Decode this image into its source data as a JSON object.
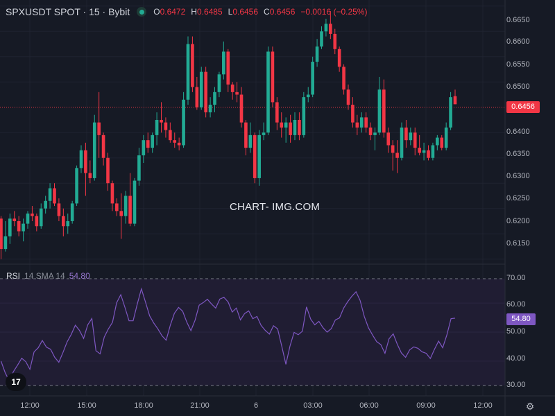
{
  "header": {
    "symbol": "SPXUSDT SPOT · 15 · Bybit",
    "o_label": "O",
    "o_value": "0.6472",
    "h_label": "H",
    "h_value": "0.6485",
    "l_label": "L",
    "l_value": "0.6456",
    "c_label": "C",
    "c_value": "0.6456",
    "change": "−0.0016 (−0.25%)"
  },
  "price_axis": {
    "ticks": [
      "0.6650",
      "0.6600",
      "0.6550",
      "0.6500",
      "0.6400",
      "0.6350",
      "0.6300",
      "0.6250",
      "0.6200",
      "0.6150"
    ],
    "last_price": "0.6456"
  },
  "watermark": "CHART- IMG.COM",
  "rsi": {
    "name": "RSI",
    "params": "14 SMA 14",
    "value": "54.80",
    "ticks": [
      "70.00",
      "60.00",
      "50.00",
      "40.00",
      "30.00"
    ]
  },
  "time_axis": [
    "12:00",
    "15:00",
    "18:00",
    "21:00",
    "6",
    "03:00",
    "06:00",
    "09:00",
    "12:00"
  ],
  "logo": "17",
  "colors": {
    "up": "#22ab94",
    "down": "#f23645",
    "rsi": "#7e57c2",
    "background": "#161a25"
  },
  "icons": {
    "settings": "gear-icon",
    "logo": "tradingview-logo"
  },
  "chart_data": [
    {
      "type": "candlestick",
      "title": "SPXUSDT SPOT · 15 · Bybit",
      "ylim": [
        0.614,
        0.6662
      ],
      "candles": [
        [
          0.623,
          0.6235,
          0.615,
          0.617
        ],
        [
          0.617,
          0.6225,
          0.6165,
          0.6195
        ],
        [
          0.6195,
          0.624,
          0.618,
          0.623
        ],
        [
          0.623,
          0.6245,
          0.6215,
          0.6225
        ],
        [
          0.6225,
          0.6235,
          0.6195,
          0.6205
        ],
        [
          0.6205,
          0.623,
          0.6185,
          0.622
        ],
        [
          0.622,
          0.6245,
          0.621,
          0.624
        ],
        [
          0.624,
          0.6255,
          0.6225,
          0.6235
        ],
        [
          0.6235,
          0.624,
          0.6205,
          0.6215
        ],
        [
          0.6215,
          0.626,
          0.621,
          0.625
        ],
        [
          0.625,
          0.6275,
          0.624,
          0.6265
        ],
        [
          0.6265,
          0.63,
          0.625,
          0.629
        ],
        [
          0.629,
          0.63,
          0.6255,
          0.626
        ],
        [
          0.626,
          0.627,
          0.6225,
          0.6235
        ],
        [
          0.6235,
          0.625,
          0.6195,
          0.6215
        ],
        [
          0.6215,
          0.624,
          0.62,
          0.6225
        ],
        [
          0.6225,
          0.6265,
          0.622,
          0.626
        ],
        [
          0.626,
          0.6335,
          0.6255,
          0.633
        ],
        [
          0.633,
          0.6375,
          0.632,
          0.6365
        ],
        [
          0.6365,
          0.638,
          0.6275,
          0.632
        ],
        [
          0.632,
          0.6345,
          0.63,
          0.631
        ],
        [
          0.631,
          0.6435,
          0.6305,
          0.642
        ],
        [
          0.642,
          0.648,
          0.635,
          0.6395
        ],
        [
          0.6395,
          0.64,
          0.6335,
          0.635
        ],
        [
          0.635,
          0.636,
          0.6285,
          0.63
        ],
        [
          0.63,
          0.6305,
          0.6245,
          0.626
        ],
        [
          0.626,
          0.627,
          0.6235,
          0.6245
        ],
        [
          0.6245,
          0.628,
          0.619,
          0.6235
        ],
        [
          0.6235,
          0.6285,
          0.622,
          0.6275
        ],
        [
          0.6275,
          0.632,
          0.6215,
          0.622
        ],
        [
          0.622,
          0.631,
          0.6215,
          0.6305
        ],
        [
          0.6305,
          0.637,
          0.6295,
          0.6355
        ],
        [
          0.6355,
          0.6395,
          0.634,
          0.6385
        ],
        [
          0.6385,
          0.64,
          0.636,
          0.637
        ],
        [
          0.637,
          0.64,
          0.636,
          0.6395
        ],
        [
          0.6395,
          0.644,
          0.6375,
          0.6425
        ],
        [
          0.6425,
          0.646,
          0.64,
          0.642
        ],
        [
          0.642,
          0.643,
          0.639,
          0.6405
        ],
        [
          0.6405,
          0.642,
          0.638,
          0.6385
        ],
        [
          0.6385,
          0.64,
          0.637,
          0.638
        ],
        [
          0.638,
          0.639,
          0.6365,
          0.6375
        ],
        [
          0.6375,
          0.648,
          0.637,
          0.6465
        ],
        [
          0.6465,
          0.659,
          0.6455,
          0.6575
        ],
        [
          0.6575,
          0.659,
          0.648,
          0.649
        ],
        [
          0.649,
          0.651,
          0.6445,
          0.645
        ],
        [
          0.645,
          0.653,
          0.6445,
          0.652
        ],
        [
          0.652,
          0.653,
          0.643,
          0.644
        ],
        [
          0.644,
          0.647,
          0.643,
          0.6455
        ],
        [
          0.6455,
          0.649,
          0.644,
          0.648
        ],
        [
          0.648,
          0.652,
          0.647,
          0.6515
        ],
        [
          0.6515,
          0.658,
          0.6505,
          0.656
        ],
        [
          0.656,
          0.6565,
          0.648,
          0.6495
        ],
        [
          0.6495,
          0.65,
          0.6465,
          0.648
        ],
        [
          0.648,
          0.65,
          0.646,
          0.6475
        ],
        [
          0.6475,
          0.649,
          0.641,
          0.642
        ],
        [
          0.642,
          0.6425,
          0.6355,
          0.637
        ],
        [
          0.637,
          0.642,
          0.636,
          0.6395
        ],
        [
          0.6395,
          0.64,
          0.63,
          0.631
        ],
        [
          0.631,
          0.6405,
          0.6295,
          0.6395
        ],
        [
          0.6395,
          0.642,
          0.6385,
          0.64
        ],
        [
          0.64,
          0.657,
          0.6395,
          0.656
        ],
        [
          0.656,
          0.657,
          0.645,
          0.646
        ],
        [
          0.646,
          0.647,
          0.6405,
          0.642
        ],
        [
          0.642,
          0.644,
          0.639,
          0.641
        ],
        [
          0.641,
          0.643,
          0.638,
          0.642
        ],
        [
          0.642,
          0.6435,
          0.638,
          0.6395
        ],
        [
          0.6395,
          0.644,
          0.6385,
          0.6425
        ],
        [
          0.6425,
          0.644,
          0.6385,
          0.6395
        ],
        [
          0.6395,
          0.648,
          0.639,
          0.647
        ],
        [
          0.647,
          0.649,
          0.646,
          0.6475
        ],
        [
          0.6475,
          0.655,
          0.647,
          0.654
        ],
        [
          0.654,
          0.6585,
          0.653,
          0.657
        ],
        [
          0.657,
          0.661,
          0.6565,
          0.66
        ],
        [
          0.66,
          0.6625,
          0.659,
          0.6615
        ],
        [
          0.6615,
          0.664,
          0.6585,
          0.6595
        ],
        [
          0.6595,
          0.6605,
          0.6555,
          0.6565
        ],
        [
          0.6565,
          0.657,
          0.652,
          0.653
        ],
        [
          0.653,
          0.6535,
          0.6475,
          0.6485
        ],
        [
          0.6485,
          0.6495,
          0.6445,
          0.6455
        ],
        [
          0.6455,
          0.647,
          0.641,
          0.642
        ],
        [
          0.642,
          0.6435,
          0.6395,
          0.641
        ],
        [
          0.641,
          0.644,
          0.64,
          0.643
        ],
        [
          0.643,
          0.644,
          0.64,
          0.641
        ],
        [
          0.641,
          0.642,
          0.6385,
          0.6395
        ],
        [
          0.6395,
          0.641,
          0.6365,
          0.64
        ],
        [
          0.64,
          0.651,
          0.6395,
          0.6485
        ],
        [
          0.6485,
          0.6505,
          0.639,
          0.64
        ],
        [
          0.64,
          0.641,
          0.636,
          0.6375
        ],
        [
          0.6375,
          0.6385,
          0.6325,
          0.636
        ],
        [
          0.636,
          0.6385,
          0.632,
          0.635
        ],
        [
          0.635,
          0.642,
          0.6345,
          0.641
        ],
        [
          0.641,
          0.6425,
          0.637,
          0.6385
        ],
        [
          0.6385,
          0.641,
          0.6375,
          0.64
        ],
        [
          0.64,
          0.641,
          0.6355,
          0.637
        ],
        [
          0.637,
          0.6395,
          0.6355,
          0.636
        ],
        [
          0.636,
          0.638,
          0.6345,
          0.6365
        ],
        [
          0.6365,
          0.6375,
          0.6345,
          0.635
        ],
        [
          0.635,
          0.638,
          0.6345,
          0.6375
        ],
        [
          0.6375,
          0.6395,
          0.6365,
          0.639
        ],
        [
          0.639,
          0.6395,
          0.6365,
          0.637
        ],
        [
          0.637,
          0.642,
          0.6365,
          0.641
        ],
        [
          0.641,
          0.648,
          0.6405,
          0.647
        ],
        [
          0.6472,
          0.6485,
          0.6456,
          0.6456
        ]
      ]
    },
    {
      "type": "line",
      "title": "RSI 14 SMA 14",
      "ylim": [
        28.5,
        71.5
      ],
      "values": [
        40,
        36,
        33.2,
        36.4,
        38.6,
        41,
        39.8,
        37.2,
        43.2,
        44.6,
        47.1,
        44.8,
        44.1,
        41.3,
        39.6,
        43,
        46.6,
        49.2,
        52.4,
        50.6,
        47.8,
        52.5,
        54.7,
        43.6,
        42.5,
        48.3,
        51.1,
        53.4,
        60.1,
        62.9,
        58.6,
        53.9,
        53.9,
        59.6,
        64.9,
        60.3,
        55.6,
        53.1,
        51.1,
        48.7,
        47.2,
        52.4,
        56.5,
        58.5,
        57.2,
        53.4,
        50.5,
        54.1,
        59.3,
        60.2,
        61.3,
        59.7,
        58.3,
        61.4,
        62,
        60.4,
        56.9,
        58.3,
        54.2,
        56.4,
        57.3,
        54.6,
        55.4,
        52.3,
        50.6,
        49.3,
        52.2,
        51.1,
        45.2,
        38.9,
        45.2,
        49.9,
        49.1,
        50.3,
        58.7,
        54.5,
        52.5,
        53.7,
        51.5,
        50,
        51.2,
        54.2,
        54.9,
        58.3,
        60.5,
        62.4,
        63.9,
        60.9,
        55.4,
        51.5,
        49,
        46.7,
        45.7,
        42.7,
        47.7,
        49.4,
        45.8,
        42.8,
        41.3,
        43.9,
        44.9,
        44.4,
        43.2,
        42.7,
        40.9,
        44.1,
        46.9,
        44.6,
        49,
        54.6,
        54.8
      ]
    }
  ]
}
